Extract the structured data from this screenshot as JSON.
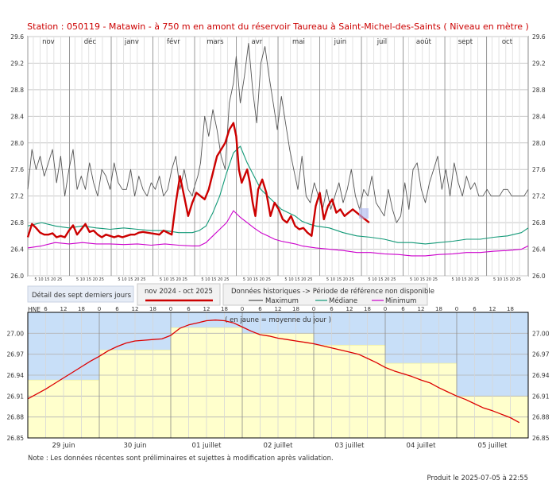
{
  "header": {
    "title": "Station : 050119      -  Matawin - à 750 m en amont du réservoir Taureau à Saint-Michel-des-Saints    ( Niveau en mètre )"
  },
  "legend": {
    "period_label": "nov 2024 - oct 2025",
    "historic_label": "Données historiques -> Période de référence non disponible",
    "maximum": "Maximum",
    "median": "Médiane",
    "minimum": "Minimum",
    "detail_label": "Détail des sept derniers jours",
    "mean_label": "( en jaune = moyenne du jour )"
  },
  "footer": {
    "note": "Note : Les données récentes sont préliminaires et sujettes à modification après validation.",
    "produced": "Produit le 2025-07-05 à 22:55"
  },
  "colors": {
    "current": "#cc0000",
    "maximum": "#555555",
    "median": "#119977",
    "minimum": "#cc00cc",
    "detail_line": "#dd0000",
    "sky": "#c8dff8",
    "daily_mean": "#ffffcc"
  },
  "chart_data": [
    {
      "type": "line",
      "ylim": [
        26.0,
        29.6
      ],
      "yticks": [
        "29.6",
        "29.2",
        "28.8",
        "28.4",
        "28.0",
        "27.6",
        "27.2",
        "26.8",
        "26.4",
        "26.0"
      ],
      "ytick_values": [
        29.6,
        29.2,
        28.8,
        28.4,
        28.0,
        27.6,
        27.2,
        26.8,
        26.4,
        26.0
      ],
      "month_labels": [
        "nov",
        "déc",
        "janv",
        "févr",
        "mars",
        "avr",
        "mai",
        "juin",
        "juil",
        "août",
        "sept",
        "oct"
      ],
      "day_tick_label": "5 10 15 20 25",
      "x_unit": "days since Nov 1 2024",
      "x_range": [
        0,
        365
      ],
      "grid": true,
      "series": [
        {
          "name": "Maximum",
          "x": [
            0,
            3,
            6,
            9,
            12,
            15,
            18,
            21,
            24,
            27,
            30,
            33,
            36,
            39,
            42,
            45,
            48,
            51,
            54,
            57,
            60,
            63,
            66,
            69,
            72,
            75,
            78,
            81,
            84,
            87,
            90,
            93,
            96,
            99,
            102,
            105,
            108,
            111,
            114,
            117,
            120,
            121,
            124,
            126,
            129,
            132,
            135,
            138,
            141,
            144,
            147,
            150,
            152,
            155,
            158,
            161,
            164,
            167,
            170,
            173,
            176,
            179,
            182,
            185,
            188,
            191,
            194,
            197,
            200,
            203,
            206,
            209,
            212,
            215,
            218,
            221,
            224,
            227,
            230,
            233,
            236,
            239,
            242,
            245,
            248,
            251,
            254,
            257,
            260,
            263,
            266,
            269,
            272,
            275,
            278,
            281,
            284,
            287,
            290,
            293,
            296,
            299,
            302,
            305,
            308,
            311,
            314,
            317,
            320,
            323,
            326,
            329,
            332,
            335,
            338,
            341,
            344,
            347,
            350,
            353,
            356,
            359,
            362,
            365
          ],
          "values": [
            27.3,
            27.9,
            27.6,
            27.8,
            27.5,
            27.7,
            27.9,
            27.4,
            27.8,
            27.2,
            27.6,
            27.9,
            27.3,
            27.5,
            27.3,
            27.7,
            27.4,
            27.2,
            27.6,
            27.5,
            27.3,
            27.7,
            27.4,
            27.3,
            27.3,
            27.6,
            27.2,
            27.5,
            27.3,
            27.2,
            27.4,
            27.3,
            27.5,
            27.2,
            27.3,
            27.6,
            27.8,
            27.3,
            27.6,
            27.3,
            27.2,
            27.3,
            27.5,
            27.7,
            28.4,
            28.1,
            28.5,
            28.2,
            27.8,
            27.6,
            28.6,
            28.9,
            29.3,
            28.6,
            29.0,
            29.5,
            28.8,
            28.3,
            29.2,
            29.45,
            29.0,
            28.6,
            28.2,
            28.7,
            28.3,
            27.9,
            27.6,
            27.3,
            27.8,
            27.2,
            27.1,
            27.4,
            27.2,
            27.0,
            27.3,
            27.0,
            27.2,
            27.4,
            27.1,
            27.3,
            27.6,
            27.2,
            27.0,
            27.3,
            27.2,
            27.5,
            27.1,
            27.0,
            26.9,
            27.3,
            27.0,
            26.8,
            26.9,
            27.4,
            27.0,
            27.6,
            27.7,
            27.3,
            27.1,
            27.4,
            27.6,
            27.8,
            27.3,
            27.6,
            27.2,
            27.7,
            27.4,
            27.2,
            27.5,
            27.3,
            27.4,
            27.2,
            27.2,
            27.3,
            27.2,
            27.2,
            27.2,
            27.3,
            27.3,
            27.2,
            27.2,
            27.2,
            27.2,
            27.3
          ]
        },
        {
          "name": "Médiane",
          "x": [
            0,
            10,
            20,
            30,
            40,
            50,
            60,
            70,
            80,
            90,
            100,
            110,
            120,
            125,
            130,
            135,
            140,
            145,
            150,
            155,
            160,
            165,
            170,
            175,
            180,
            185,
            190,
            195,
            200,
            205,
            210,
            220,
            230,
            240,
            250,
            260,
            270,
            280,
            290,
            300,
            310,
            320,
            330,
            340,
            350,
            360,
            365
          ],
          "values": [
            26.75,
            26.8,
            26.75,
            26.72,
            26.75,
            26.72,
            26.7,
            26.72,
            26.7,
            26.68,
            26.68,
            26.65,
            26.65,
            26.68,
            26.75,
            26.95,
            27.2,
            27.55,
            27.85,
            27.95,
            27.7,
            27.5,
            27.3,
            27.2,
            27.1,
            27.0,
            26.95,
            26.9,
            26.82,
            26.78,
            26.75,
            26.72,
            26.65,
            26.6,
            26.58,
            26.55,
            26.5,
            26.5,
            26.48,
            26.5,
            26.52,
            26.55,
            26.55,
            26.58,
            26.6,
            26.65,
            26.72
          ]
        },
        {
          "name": "Minimum",
          "x": [
            0,
            10,
            20,
            30,
            40,
            50,
            60,
            70,
            80,
            90,
            100,
            110,
            120,
            125,
            130,
            135,
            140,
            145,
            150,
            155,
            160,
            165,
            170,
            175,
            180,
            185,
            190,
            195,
            200,
            210,
            220,
            230,
            240,
            250,
            260,
            270,
            280,
            290,
            300,
            310,
            320,
            330,
            340,
            350,
            360,
            365
          ],
          "values": [
            26.42,
            26.45,
            26.5,
            26.48,
            26.5,
            26.48,
            26.48,
            26.47,
            26.48,
            26.46,
            26.48,
            26.46,
            26.45,
            26.45,
            26.5,
            26.6,
            26.7,
            26.8,
            26.98,
            26.88,
            26.8,
            26.72,
            26.65,
            26.6,
            26.55,
            26.52,
            26.5,
            26.48,
            26.45,
            26.42,
            26.4,
            26.38,
            26.35,
            26.35,
            26.33,
            26.32,
            26.3,
            26.3,
            26.32,
            26.33,
            26.35,
            26.35,
            26.37,
            26.38,
            26.4,
            26.45
          ]
        },
        {
          "name": "nov 2024 - oct 2025",
          "x": [
            0,
            3,
            6,
            9,
            12,
            15,
            18,
            21,
            24,
            27,
            30,
            33,
            36,
            39,
            42,
            45,
            48,
            51,
            54,
            57,
            60,
            63,
            66,
            69,
            72,
            75,
            78,
            81,
            84,
            87,
            90,
            93,
            96,
            99,
            102,
            105,
            108,
            111,
            114,
            117,
            120,
            123,
            126,
            129,
            132,
            135,
            138,
            141,
            144,
            147,
            150,
            152,
            154,
            156,
            158,
            160,
            162,
            164,
            166,
            168,
            171,
            174,
            177,
            180,
            183,
            186,
            189,
            192,
            195,
            198,
            201,
            204,
            207,
            210,
            213,
            216,
            219,
            222,
            225,
            228,
            231,
            234,
            237,
            240,
            243,
            246,
            249
          ],
          "values": [
            26.58,
            26.78,
            26.72,
            26.65,
            26.62,
            26.62,
            26.64,
            26.58,
            26.6,
            26.58,
            26.68,
            26.76,
            26.62,
            26.7,
            26.78,
            26.66,
            26.68,
            26.62,
            26.58,
            26.62,
            26.6,
            26.58,
            26.6,
            26.58,
            26.6,
            26.62,
            26.62,
            26.65,
            26.66,
            26.65,
            26.64,
            26.63,
            26.62,
            26.68,
            26.65,
            26.62,
            27.1,
            27.5,
            27.2,
            26.9,
            27.1,
            27.25,
            27.2,
            27.15,
            27.3,
            27.55,
            27.8,
            27.9,
            28.0,
            28.2,
            28.3,
            28.1,
            27.6,
            27.4,
            27.5,
            27.6,
            27.4,
            27.1,
            26.9,
            27.3,
            27.45,
            27.25,
            26.9,
            27.1,
            27.0,
            26.85,
            26.8,
            26.9,
            26.75,
            26.7,
            26.72,
            26.65,
            26.6,
            27.05,
            27.25,
            26.85,
            27.05,
            27.15,
            26.95,
            27.0,
            26.9,
            26.95,
            27.0,
            26.95,
            26.9,
            26.85,
            26.8
          ]
        }
      ]
    },
    {
      "type": "line",
      "title": "Détail des sept derniers jours",
      "ylabel": "HNE",
      "ylim": [
        26.85,
        27.03
      ],
      "yticks": [
        "27.00",
        "26.97",
        "26.94",
        "26.91",
        "26.88",
        "26.85"
      ],
      "ytick_values": [
        27.0,
        26.97,
        26.94,
        26.91,
        26.88,
        26.85
      ],
      "hour_ticks": [
        "6",
        "12",
        "18",
        "0",
        "6",
        "12",
        "18",
        "0",
        "6",
        "12",
        "18",
        "0",
        "6",
        "12",
        "18",
        "0",
        "6",
        "12",
        "18",
        "0",
        "6",
        "12",
        "18",
        "0",
        "6",
        "12",
        "18"
      ],
      "day_labels": [
        "29 juin",
        "30 juin",
        "01 juillet",
        "02 juillet",
        "03 juillet",
        "04 juillet",
        "05 juillet"
      ],
      "x_unit": "hours since 29 juin 00:00",
      "x_range": [
        0,
        168
      ],
      "daily_mean": [
        26.933,
        26.976,
        27.008,
        27.0,
        26.983,
        26.957,
        26.91
      ],
      "series": [
        {
          "name": "Niveau",
          "x": [
            0,
            3,
            6,
            9,
            12,
            15,
            18,
            21,
            24,
            27,
            30,
            33,
            36,
            39,
            42,
            45,
            48,
            51,
            54,
            57,
            60,
            63,
            66,
            69,
            72,
            75,
            78,
            81,
            84,
            87,
            90,
            93,
            96,
            99,
            102,
            105,
            108,
            111,
            114,
            117,
            120,
            123,
            126,
            129,
            132,
            135,
            138,
            141,
            144,
            147,
            150,
            153,
            156,
            159,
            162,
            165
          ],
          "values": [
            26.906,
            26.913,
            26.92,
            26.928,
            26.936,
            26.944,
            26.952,
            26.96,
            26.967,
            26.975,
            26.981,
            26.986,
            26.989,
            26.99,
            26.991,
            26.992,
            26.997,
            27.007,
            27.012,
            27.015,
            27.018,
            27.019,
            27.018,
            27.015,
            27.009,
            27.003,
            26.998,
            26.996,
            26.993,
            26.991,
            26.989,
            26.987,
            26.985,
            26.982,
            26.979,
            26.976,
            26.973,
            26.97,
            26.964,
            26.958,
            26.951,
            26.946,
            26.942,
            26.938,
            26.933,
            26.929,
            26.922,
            26.916,
            26.91,
            26.905,
            26.899,
            26.893,
            26.889,
            26.884,
            26.879,
            26.872
          ]
        }
      ]
    }
  ]
}
